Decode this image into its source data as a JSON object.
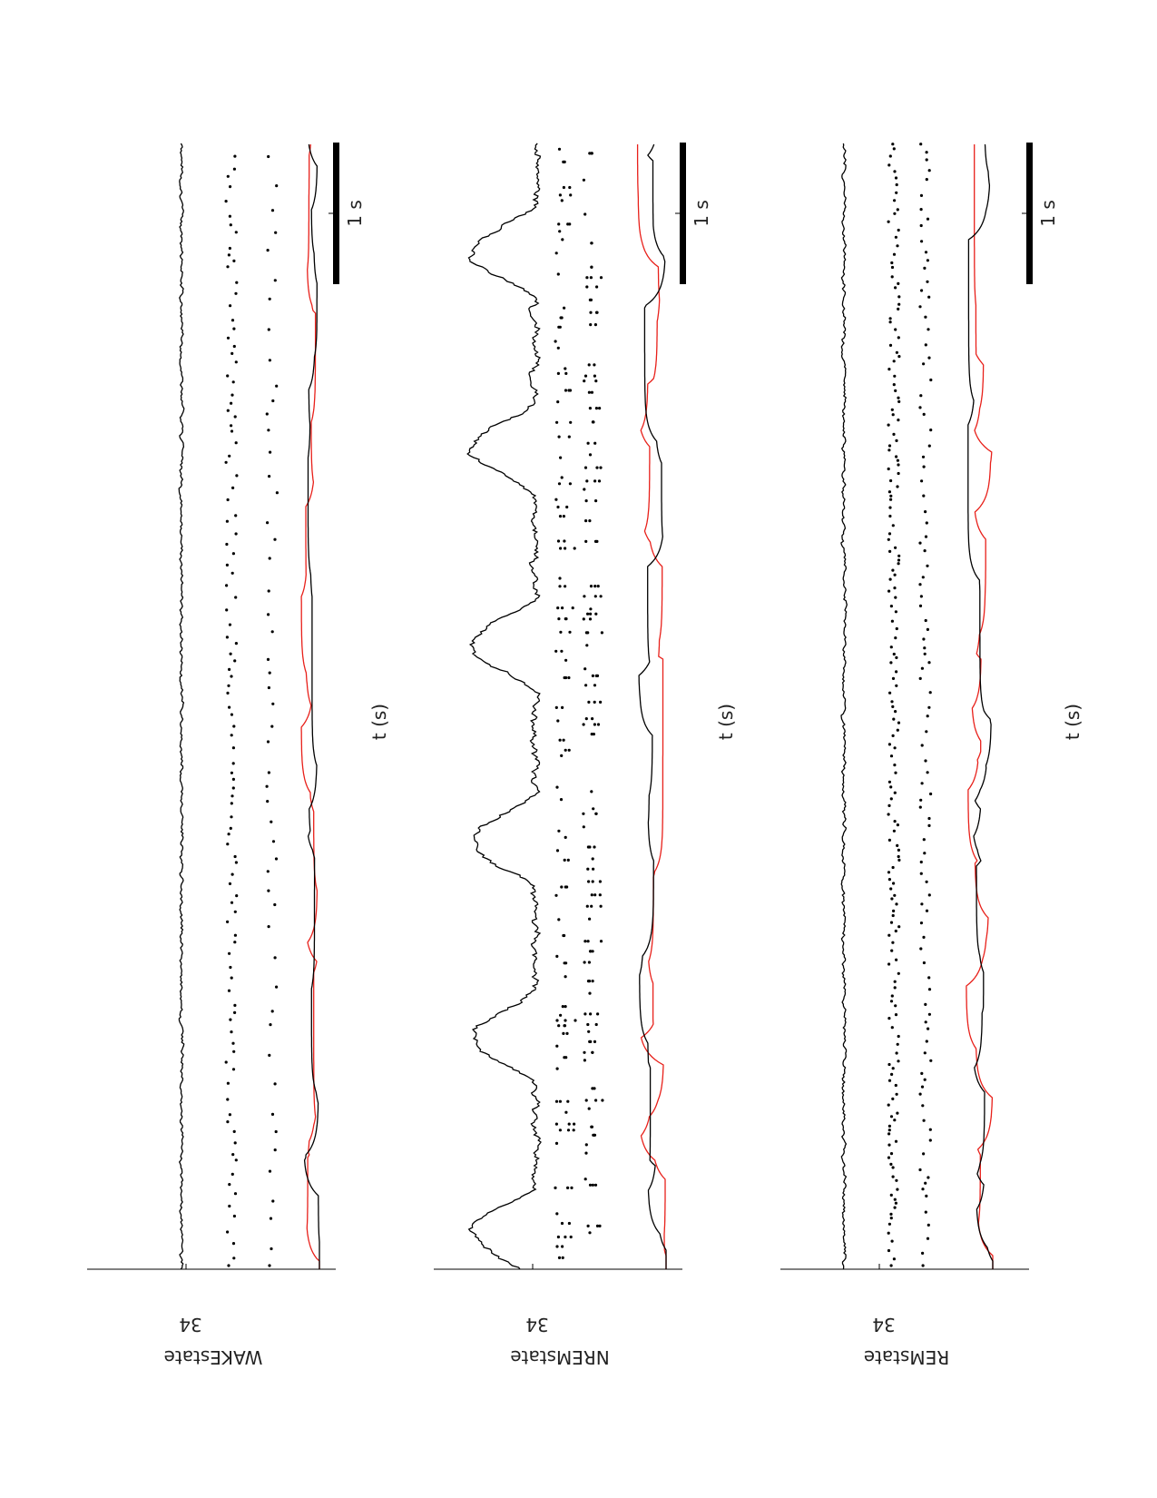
{
  "figure": {
    "colors": {
      "lfp": "#000000",
      "spikes": "#000000",
      "smooth_red": "#e8201a",
      "smooth_black": "#000000",
      "scalebar": "#000000"
    }
  },
  "chart_data": [
    {
      "type": "line",
      "title": "WAKEstate",
      "tick_label": "34",
      "xlabel": "t (s)",
      "scalebar_label": "1 s",
      "series": [
        {
          "role": "lfp",
          "profile": "flat",
          "amplitude": 0.35
        },
        {
          "role": "raster_a",
          "density": "medium"
        },
        {
          "role": "raster_b",
          "density": "sparse"
        },
        {
          "role": "rate_red",
          "amplitude": 0.5
        },
        {
          "role": "rate_black",
          "amplitude": 0.45
        }
      ]
    },
    {
      "type": "line",
      "title": "NREMstate",
      "tick_label": "34",
      "xlabel": "t (s)",
      "scalebar_label": "1 s",
      "series": [
        {
          "role": "lfp",
          "profile": "slow-waves",
          "amplitude": 1.0
        },
        {
          "role": "raster_a",
          "density": "bursty"
        },
        {
          "role": "raster_b",
          "density": "bursty"
        },
        {
          "role": "rate_red",
          "amplitude": 0.8
        },
        {
          "role": "rate_black",
          "amplitude": 0.8
        }
      ]
    },
    {
      "type": "line",
      "title": "REMstate",
      "tick_label": "34",
      "xlabel": "t (s)",
      "scalebar_label": "1 s",
      "series": [
        {
          "role": "lfp",
          "profile": "flat",
          "amplitude": 0.4
        },
        {
          "role": "raster_a",
          "density": "dense"
        },
        {
          "role": "raster_b",
          "density": "medium"
        },
        {
          "role": "rate_red",
          "amplitude": 0.75
        },
        {
          "role": "rate_black",
          "amplitude": 0.7
        }
      ]
    }
  ]
}
